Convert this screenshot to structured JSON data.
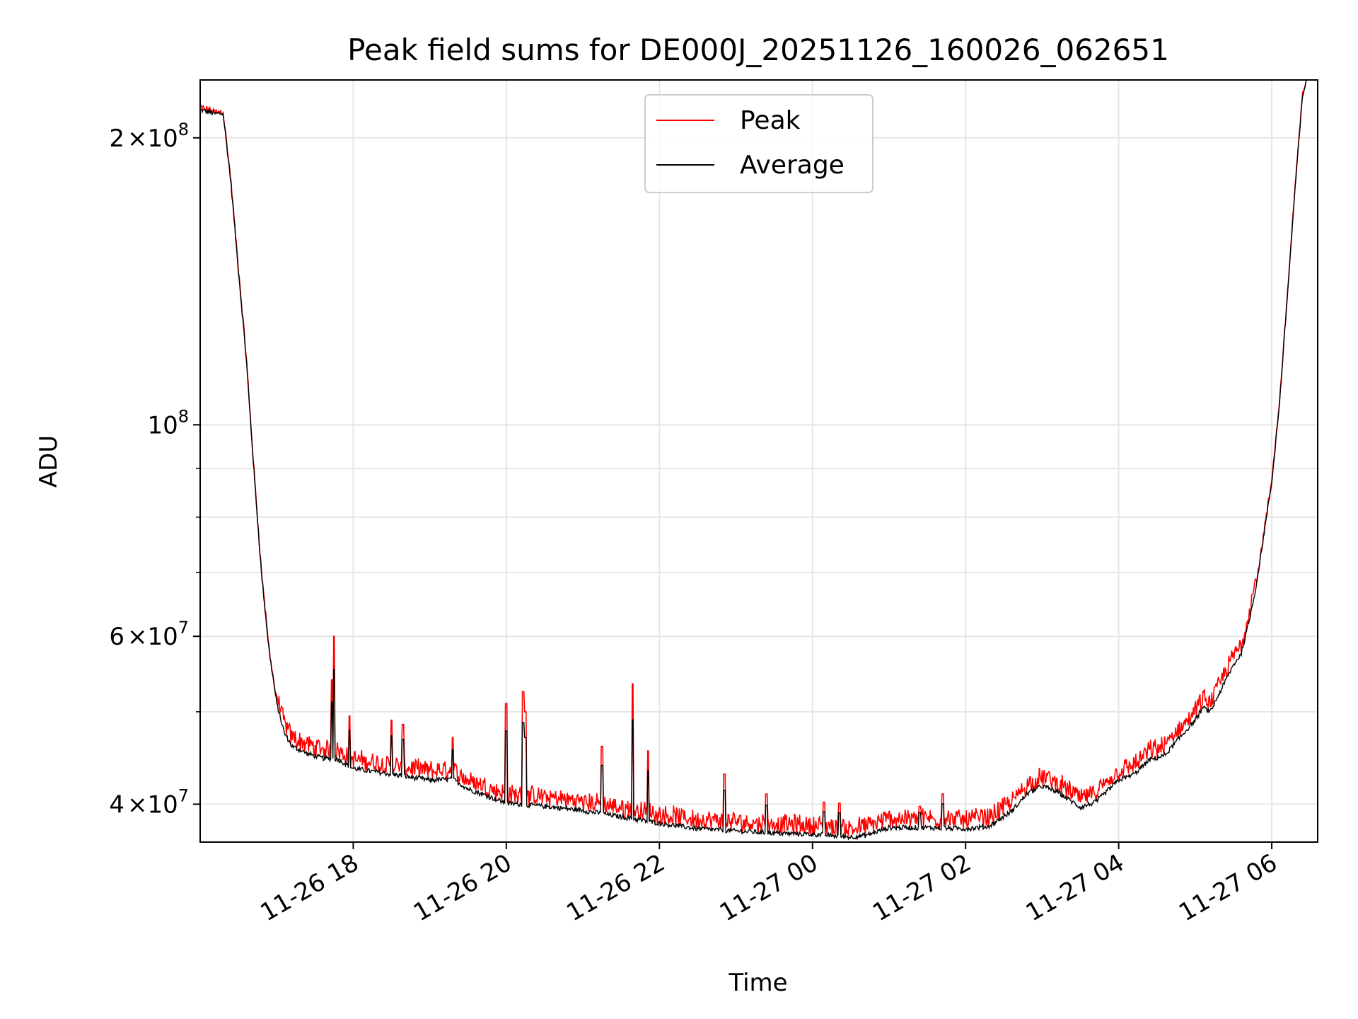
{
  "chart_data": {
    "type": "line",
    "title": "Peak field sums for DE000J_20251126_160026_062651",
    "xlabel": "Time",
    "ylabel": "ADU",
    "yscale": "log",
    "xlim_hours": [
      16.0,
      30.6
    ],
    "ylim": [
      36500000,
      230000000
    ],
    "grid": true,
    "legend_position": "upper center",
    "x_ticks": [
      {
        "label": "11-26 18",
        "hour": 18
      },
      {
        "label": "11-26 20",
        "hour": 20
      },
      {
        "label": "11-26 22",
        "hour": 22
      },
      {
        "label": "11-27 00",
        "hour": 24
      },
      {
        "label": "11-27 02",
        "hour": 26
      },
      {
        "label": "11-27 04",
        "hour": 28
      },
      {
        "label": "11-27 06",
        "hour": 30
      }
    ],
    "y_ticks": [
      {
        "value": 40000000,
        "mantissa": "4",
        "exponent": "7"
      },
      {
        "value": 60000000,
        "mantissa": "6",
        "exponent": "7"
      },
      {
        "value": 100000000,
        "mantissa": "",
        "exponent": "8"
      },
      {
        "value": 200000000,
        "mantissa": "2",
        "exponent": "8"
      }
    ],
    "y_minor_ticks": [
      50000000,
      70000000,
      80000000,
      90000000
    ],
    "tick_text": {
      "times": "×",
      "base": "10"
    },
    "baseline": [
      [
        16.0,
        214000000
      ],
      [
        16.2,
        212000000
      ],
      [
        16.3,
        212000000
      ],
      [
        16.4,
        180000000
      ],
      [
        16.5,
        145000000
      ],
      [
        16.6,
        118000000
      ],
      [
        16.7,
        90000000
      ],
      [
        16.8,
        70000000
      ],
      [
        16.9,
        58000000
      ],
      [
        17.0,
        51000000
      ],
      [
        17.1,
        47500000
      ],
      [
        17.2,
        46000000
      ],
      [
        17.4,
        45200000
      ],
      [
        17.6,
        44700000
      ],
      [
        17.8,
        44600000
      ],
      [
        18.0,
        43600000
      ],
      [
        18.5,
        43000000
      ],
      [
        19.0,
        42400000
      ],
      [
        19.3,
        42500000
      ],
      [
        19.5,
        41500000
      ],
      [
        20.0,
        40100000
      ],
      [
        20.5,
        39800000
      ],
      [
        21.0,
        39400000
      ],
      [
        21.5,
        38800000
      ],
      [
        22.0,
        38200000
      ],
      [
        22.5,
        37700000
      ],
      [
        23.0,
        37500000
      ],
      [
        23.5,
        37300000
      ],
      [
        24.0,
        37200000
      ],
      [
        24.5,
        36950000
      ],
      [
        24.7,
        37100000
      ],
      [
        25.0,
        37800000
      ],
      [
        25.5,
        37800000
      ],
      [
        26.0,
        37700000
      ],
      [
        26.3,
        37900000
      ],
      [
        26.6,
        39300000
      ],
      [
        26.8,
        41000000
      ],
      [
        27.0,
        41800000
      ],
      [
        27.2,
        41200000
      ],
      [
        27.5,
        39700000
      ],
      [
        27.7,
        40200000
      ],
      [
        28.0,
        42400000
      ],
      [
        28.2,
        43000000
      ],
      [
        28.4,
        44500000
      ],
      [
        28.6,
        45000000
      ],
      [
        28.8,
        47000000
      ],
      [
        29.0,
        49000000
      ],
      [
        29.1,
        50500000
      ],
      [
        29.2,
        50000000
      ],
      [
        29.3,
        52000000
      ],
      [
        29.5,
        56000000
      ],
      [
        29.6,
        57500000
      ],
      [
        29.7,
        62000000
      ],
      [
        29.8,
        68000000
      ],
      [
        29.9,
        77000000
      ],
      [
        30.0,
        87000000
      ],
      [
        30.1,
        105000000
      ],
      [
        30.2,
        135000000
      ],
      [
        30.3,
        175000000
      ],
      [
        30.4,
        220000000
      ],
      [
        30.45,
        230000000
      ]
    ],
    "series": [
      {
        "name": "Peak",
        "color": "#ff0000"
      },
      {
        "name": "Average",
        "color": "#000000"
      }
    ],
    "spikes": [
      {
        "hour": 17.75,
        "value": 60000000
      },
      {
        "hour": 17.72,
        "value": 54000000
      },
      {
        "hour": 17.95,
        "value": 49500000
      },
      {
        "hour": 18.5,
        "value": 49000000
      },
      {
        "hour": 18.65,
        "value": 48500000
      },
      {
        "hour": 19.3,
        "value": 47000000
      },
      {
        "hour": 20.0,
        "value": 51000000
      },
      {
        "hour": 20.22,
        "value": 52500000
      },
      {
        "hour": 20.25,
        "value": 50000000
      },
      {
        "hour": 21.25,
        "value": 46000000
      },
      {
        "hour": 21.65,
        "value": 53500000
      },
      {
        "hour": 21.85,
        "value": 45500000
      },
      {
        "hour": 22.85,
        "value": 43000000
      },
      {
        "hour": 23.4,
        "value": 41000000
      },
      {
        "hour": 24.15,
        "value": 40200000
      },
      {
        "hour": 24.35,
        "value": 40100000
      },
      {
        "hour": 25.4,
        "value": 39800000
      },
      {
        "hour": 25.7,
        "value": 41000000
      }
    ]
  }
}
